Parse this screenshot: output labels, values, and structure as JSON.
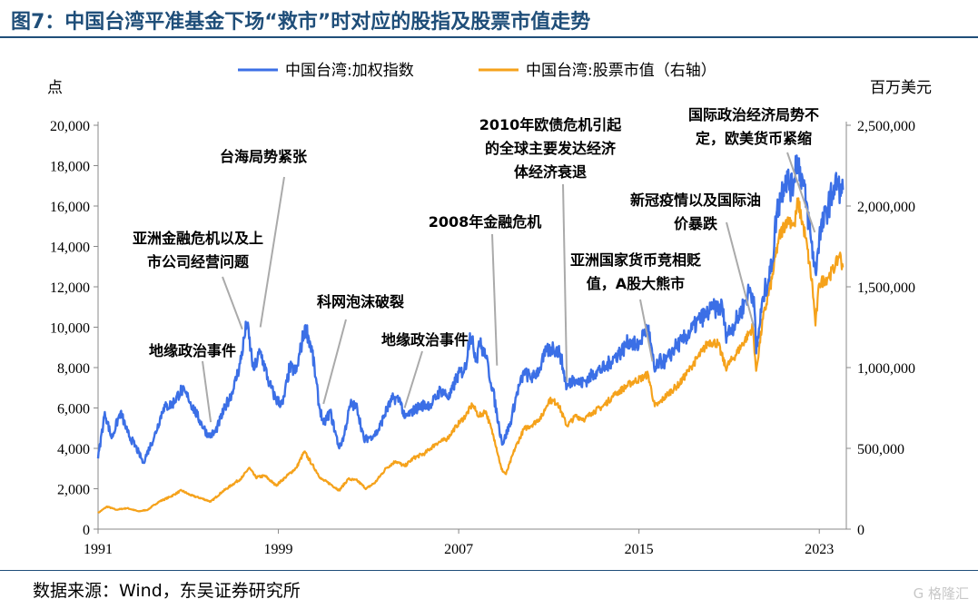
{
  "title": "图7：中国台湾平准基金下场“救市”时对应的股指及股票市值走势",
  "source": "数据来源：Wind，东吴证券研究所",
  "watermark": "G 格隆汇",
  "colors": {
    "index": "#3b6fe6",
    "mcap": "#f5a21b",
    "title": "#1f4e79",
    "annot_line": "#aaaaaa"
  },
  "chart_data": {
    "type": "line",
    "left_axis": {
      "unit": "点",
      "ylim": [
        0,
        20000
      ],
      "ticks": [
        "0",
        "2,000",
        "4,000",
        "6,000",
        "8,000",
        "10,000",
        "12,000",
        "14,000",
        "16,000",
        "18,000",
        "20,000"
      ]
    },
    "right_axis": {
      "unit": "百万美元",
      "ylim": [
        0,
        2500000
      ],
      "ticks": [
        "0",
        "500,000",
        "1,000,000",
        "1,500,000",
        "2,000,000",
        "2,500,000"
      ]
    },
    "x_axis": {
      "range": [
        1991,
        2024.2
      ],
      "ticks": [
        {
          "label": "1991",
          "value": 1991
        },
        {
          "label": "1999",
          "value": 1999
        },
        {
          "label": "2007",
          "value": 2007
        },
        {
          "label": "2015",
          "value": 2015
        },
        {
          "label": "2023",
          "value": 2023
        }
      ]
    },
    "legend": [
      {
        "label": "中国台湾:加权指数",
        "series": "index"
      },
      {
        "label": "中国台湾:股票市值（右轴）",
        "series": "mcap"
      }
    ],
    "series": [
      {
        "key": "index",
        "name": "中国台湾:加权指数",
        "axis": "left",
        "points": [
          [
            1991.0,
            3500
          ],
          [
            1991.3,
            5800
          ],
          [
            1991.6,
            4500
          ],
          [
            1992.0,
            5800
          ],
          [
            1992.3,
            4800
          ],
          [
            1992.8,
            3800
          ],
          [
            1993.0,
            3300
          ],
          [
            1993.5,
            4600
          ],
          [
            1993.9,
            6000
          ],
          [
            1994.3,
            6200
          ],
          [
            1994.7,
            6900
          ],
          [
            1995.0,
            6500
          ],
          [
            1995.5,
            5400
          ],
          [
            1995.9,
            4600
          ],
          [
            1996.2,
            4800
          ],
          [
            1996.7,
            6200
          ],
          [
            1997.0,
            6900
          ],
          [
            1997.3,
            8200
          ],
          [
            1997.6,
            10200
          ],
          [
            1997.9,
            7900
          ],
          [
            1998.2,
            8800
          ],
          [
            1998.6,
            7200
          ],
          [
            1998.9,
            6400
          ],
          [
            1999.2,
            6200
          ],
          [
            1999.5,
            8000
          ],
          [
            1999.8,
            7800
          ],
          [
            2000.0,
            9000
          ],
          [
            2000.2,
            10100
          ],
          [
            2000.5,
            8800
          ],
          [
            2000.8,
            6200
          ],
          [
            2001.0,
            5200
          ],
          [
            2001.3,
            5800
          ],
          [
            2001.7,
            4000
          ],
          [
            2001.9,
            4600
          ],
          [
            2002.2,
            6200
          ],
          [
            2002.5,
            6000
          ],
          [
            2002.8,
            4400
          ],
          [
            2003.1,
            4600
          ],
          [
            2003.4,
            4800
          ],
          [
            2003.8,
            5900
          ],
          [
            2004.1,
            6500
          ],
          [
            2004.4,
            6400
          ],
          [
            2004.6,
            5500
          ],
          [
            2004.9,
            5800
          ],
          [
            2005.3,
            6100
          ],
          [
            2005.8,
            6200
          ],
          [
            2006.2,
            6900
          ],
          [
            2006.6,
            6500
          ],
          [
            2006.9,
            7500
          ],
          [
            2007.3,
            8000
          ],
          [
            2007.5,
            9700
          ],
          [
            2007.8,
            8400
          ],
          [
            2007.9,
            9300
          ],
          [
            2008.2,
            8500
          ],
          [
            2008.5,
            7000
          ],
          [
            2008.8,
            5000
          ],
          [
            2008.95,
            4200
          ],
          [
            2009.3,
            5300
          ],
          [
            2009.6,
            6800
          ],
          [
            2009.9,
            7700
          ],
          [
            2010.3,
            7500
          ],
          [
            2010.6,
            8000
          ],
          [
            2010.9,
            8800
          ],
          [
            2011.2,
            9000
          ],
          [
            2011.5,
            8700
          ],
          [
            2011.8,
            7000
          ],
          [
            2012.1,
            7500
          ],
          [
            2012.4,
            7200
          ],
          [
            2012.7,
            7400
          ],
          [
            2013.1,
            7800
          ],
          [
            2013.5,
            8000
          ],
          [
            2013.9,
            8500
          ],
          [
            2014.3,
            8900
          ],
          [
            2014.6,
            9400
          ],
          [
            2014.9,
            9000
          ],
          [
            2015.2,
            9600
          ],
          [
            2015.4,
            10000
          ],
          [
            2015.6,
            8500
          ],
          [
            2015.7,
            7800
          ],
          [
            2015.9,
            8300
          ],
          [
            2016.2,
            8300
          ],
          [
            2016.6,
            9000
          ],
          [
            2016.9,
            9300
          ],
          [
            2017.3,
            9800
          ],
          [
            2017.7,
            10400
          ],
          [
            2017.95,
            10600
          ],
          [
            2018.3,
            10900
          ],
          [
            2018.7,
            11000
          ],
          [
            2018.85,
            9600
          ],
          [
            2019.1,
            9900
          ],
          [
            2019.5,
            10700
          ],
          [
            2019.9,
            11800
          ],
          [
            2020.1,
            11500
          ],
          [
            2020.2,
            8700
          ],
          [
            2020.5,
            11500
          ],
          [
            2020.9,
            13000
          ],
          [
            2021.1,
            15600
          ],
          [
            2021.5,
            17500
          ],
          [
            2021.8,
            16800
          ],
          [
            2022.0,
            18500
          ],
          [
            2022.3,
            17000
          ],
          [
            2022.6,
            14700
          ],
          [
            2022.83,
            12700
          ],
          [
            2023.0,
            14500
          ],
          [
            2023.4,
            16000
          ],
          [
            2023.6,
            16700
          ],
          [
            2023.8,
            17200
          ],
          [
            2023.95,
            16500
          ],
          [
            2024.05,
            16800
          ]
        ]
      },
      {
        "key": "mcap",
        "name": "中国台湾:股票市值（右轴）",
        "axis": "left2",
        "points": [
          [
            1991.0,
            100000
          ],
          [
            1991.4,
            140000
          ],
          [
            1991.8,
            120000
          ],
          [
            1992.3,
            130000
          ],
          [
            1992.8,
            110000
          ],
          [
            1993.2,
            120000
          ],
          [
            1993.7,
            170000
          ],
          [
            1994.2,
            200000
          ],
          [
            1994.7,
            240000
          ],
          [
            1995.1,
            210000
          ],
          [
            1995.6,
            190000
          ],
          [
            1996.0,
            170000
          ],
          [
            1996.5,
            230000
          ],
          [
            1997.0,
            280000
          ],
          [
            1997.4,
            320000
          ],
          [
            1997.7,
            380000
          ],
          [
            1998.0,
            320000
          ],
          [
            1998.4,
            330000
          ],
          [
            1998.9,
            270000
          ],
          [
            1999.3,
            320000
          ],
          [
            1999.8,
            380000
          ],
          [
            2000.15,
            480000
          ],
          [
            2000.5,
            400000
          ],
          [
            2000.9,
            310000
          ],
          [
            2001.3,
            280000
          ],
          [
            2001.7,
            240000
          ],
          [
            2002.1,
            310000
          ],
          [
            2002.5,
            300000
          ],
          [
            2002.9,
            250000
          ],
          [
            2003.3,
            290000
          ],
          [
            2003.8,
            380000
          ],
          [
            2004.2,
            420000
          ],
          [
            2004.6,
            390000
          ],
          [
            2005.0,
            440000
          ],
          [
            2005.5,
            470000
          ],
          [
            2006.0,
            530000
          ],
          [
            2006.5,
            560000
          ],
          [
            2006.9,
            640000
          ],
          [
            2007.3,
            700000
          ],
          [
            2007.6,
            770000
          ],
          [
            2007.9,
            700000
          ],
          [
            2008.2,
            730000
          ],
          [
            2008.6,
            550000
          ],
          [
            2008.9,
            370000
          ],
          [
            2009.1,
            340000
          ],
          [
            2009.5,
            500000
          ],
          [
            2009.9,
            620000
          ],
          [
            2010.3,
            650000
          ],
          [
            2010.7,
            700000
          ],
          [
            2011.0,
            800000
          ],
          [
            2011.4,
            780000
          ],
          [
            2011.8,
            640000
          ],
          [
            2012.2,
            700000
          ],
          [
            2012.6,
            680000
          ],
          [
            2012.9,
            720000
          ],
          [
            2013.4,
            760000
          ],
          [
            2013.9,
            830000
          ],
          [
            2014.3,
            870000
          ],
          [
            2014.7,
            910000
          ],
          [
            2015.2,
            940000
          ],
          [
            2015.4,
            960000
          ],
          [
            2015.7,
            760000
          ],
          [
            2015.9,
            780000
          ],
          [
            2016.3,
            840000
          ],
          [
            2016.8,
            900000
          ],
          [
            2017.3,
            1000000
          ],
          [
            2017.8,
            1100000
          ],
          [
            2018.1,
            1160000
          ],
          [
            2018.5,
            1150000
          ],
          [
            2018.85,
            1000000
          ],
          [
            2019.2,
            1060000
          ],
          [
            2019.7,
            1170000
          ],
          [
            2020.05,
            1250000
          ],
          [
            2020.2,
            980000
          ],
          [
            2020.5,
            1300000
          ],
          [
            2020.9,
            1550000
          ],
          [
            2021.2,
            1800000
          ],
          [
            2021.6,
            1930000
          ],
          [
            2021.9,
            1880000
          ],
          [
            2022.05,
            2030000
          ],
          [
            2022.4,
            1800000
          ],
          [
            2022.7,
            1500000
          ],
          [
            2022.83,
            1260000
          ],
          [
            2023.0,
            1520000
          ],
          [
            2023.4,
            1560000
          ],
          [
            2023.7,
            1620000
          ],
          [
            2023.9,
            1700000
          ],
          [
            2024.05,
            1620000
          ]
        ]
      }
    ],
    "annotations": [
      {
        "lines": [
          "台海局势紧张"
        ],
        "x": 1998.2,
        "y": 10000
      },
      {
        "lines": [
          "亚洲金融危机以及上",
          "市公司经营问题"
        ],
        "x": 1997.4,
        "y": 9900
      },
      {
        "lines": [
          "地缘政治事件"
        ],
        "x": 1996.0,
        "y": 5300
      },
      {
        "lines": [
          "科网泡沫破裂"
        ],
        "x": 2001.0,
        "y": 6200
      },
      {
        "lines": [
          "地缘政治事件"
        ],
        "x": 2004.6,
        "y": 6000
      },
      {
        "lines": [
          "2008年金融危机"
        ],
        "x": 2008.7,
        "y": 8100
      },
      {
        "lines": [
          "2010年欧债危机引起",
          "的全球主要发达经济",
          "体经济衰退"
        ],
        "x": 2011.8,
        "y": 7300
      },
      {
        "lines": [
          "亚洲国家货币竞相贬",
          "值，A股大熊市"
        ],
        "x": 2015.6,
        "y": 8300
      },
      {
        "lines": [
          "新冠疫情以及国际油",
          "价暴跌"
        ],
        "x": 2020.1,
        "y": 10000
      },
      {
        "lines": [
          "国际政治经济局势不",
          "定，欧美货币紧缩"
        ],
        "x": 2022.8,
        "y": 14700
      }
    ]
  }
}
